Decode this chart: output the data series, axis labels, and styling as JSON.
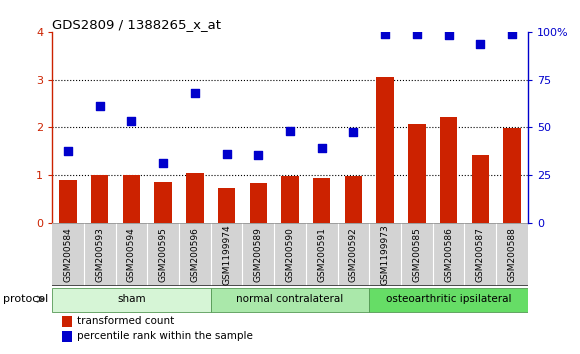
{
  "title": "GDS2809 / 1388265_x_at",
  "samples": [
    "GSM200584",
    "GSM200593",
    "GSM200594",
    "GSM200595",
    "GSM200596",
    "GSM1199974",
    "GSM200589",
    "GSM200590",
    "GSM200591",
    "GSM200592",
    "GSM1199973",
    "GSM200585",
    "GSM200586",
    "GSM200587",
    "GSM200588"
  ],
  "red_values": [
    0.9,
    1.0,
    1.0,
    0.85,
    1.05,
    0.72,
    0.82,
    0.97,
    0.93,
    0.97,
    3.05,
    2.07,
    2.22,
    1.42,
    1.98
  ],
  "blue_values_pct": [
    37.5,
    61.0,
    53.5,
    31.5,
    68.0,
    36.0,
    35.5,
    48.0,
    39.0,
    47.5,
    99.0,
    99.0,
    98.5,
    93.5,
    99.0
  ],
  "groups": [
    {
      "label": "sham",
      "start": 0,
      "end": 5
    },
    {
      "label": "normal contralateral",
      "start": 5,
      "end": 10
    },
    {
      "label": "osteoarthritic ipsilateral",
      "start": 10,
      "end": 15
    }
  ],
  "group_colors": [
    "#d6f5d6",
    "#aae8aa",
    "#66dd66"
  ],
  "left_ylim": [
    0,
    4
  ],
  "right_ylim": [
    0,
    100
  ],
  "left_yticks": [
    0,
    1,
    2,
    3,
    4
  ],
  "right_yticks": [
    0,
    25,
    50,
    75,
    100
  ],
  "right_yticklabels": [
    "0",
    "25",
    "50",
    "75",
    "100%"
  ],
  "red_color": "#cc2200",
  "blue_color": "#0000cc",
  "bar_width": 0.55,
  "bg_color": "#ffffff",
  "label_bg_color": "#d3d3d3",
  "protocol_label": "protocol",
  "legend_red": "transformed count",
  "legend_blue": "percentile rank within the sample",
  "grid_yticks": [
    1,
    2,
    3
  ]
}
